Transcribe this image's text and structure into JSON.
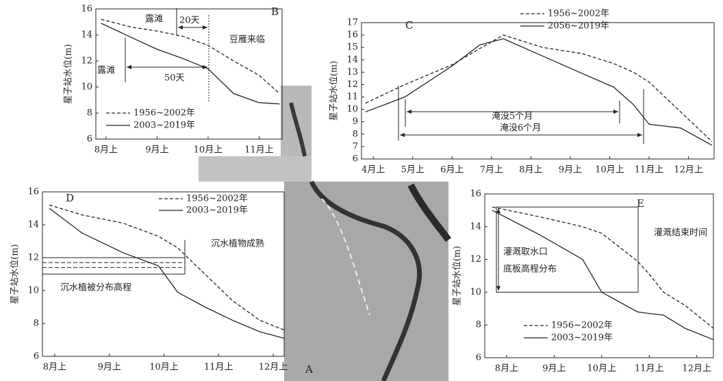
{
  "chart_data": [
    {
      "type": "line",
      "title": "B",
      "y_label": "星子站水位(m)",
      "x": [
        -0.1,
        0.5,
        1,
        1.5,
        2,
        2.5,
        3,
        3.4
      ],
      "xlim": [
        -0.2,
        3.45
      ],
      "xticks": [
        {
          "value": 0,
          "label": "8月上"
        },
        {
          "value": 1,
          "label": "9月上"
        },
        {
          "value": 2,
          "label": "10月上"
        },
        {
          "value": 3,
          "label": "11月上"
        }
      ],
      "ylim": [
        6,
        16
      ],
      "yticks": [
        6,
        8,
        10,
        12,
        14,
        16
      ],
      "series": [
        {
          "name": "1956~2002年",
          "color": "#222222",
          "line_style": "dashed",
          "values": [
            15.2,
            14.6,
            14.3,
            13.9,
            13.2,
            12.0,
            10.9,
            9.5
          ]
        },
        {
          "name": "2003~2019年",
          "color": "#222222",
          "line_style": "solid",
          "values": [
            14.9,
            13.8,
            12.9,
            12.2,
            11.4,
            9.5,
            8.8,
            8.7
          ]
        }
      ],
      "annotations": [
        "露滩",
        "20天",
        "豆雁来临",
        "露滩",
        "50天"
      ]
    },
    {
      "type": "line",
      "title": "C",
      "y_label": "星子站水位(m)",
      "x": [
        -0.2,
        0.8,
        2,
        2.7,
        3.3,
        4.3,
        5.3,
        6.1,
        6.6,
        7,
        7.8,
        8.6
      ],
      "xlim": [
        -0.3,
        8.65
      ],
      "xticks": [
        {
          "value": 0,
          "label": "4月上"
        },
        {
          "value": 1,
          "label": "5月上"
        },
        {
          "value": 2,
          "label": "6月上"
        },
        {
          "value": 3,
          "label": "7月上"
        },
        {
          "value": 4,
          "label": "8月上"
        },
        {
          "value": 5,
          "label": "9月上"
        },
        {
          "value": 6,
          "label": "10月上"
        },
        {
          "value": 7,
          "label": "11月上"
        },
        {
          "value": 8,
          "label": "12月上"
        }
      ],
      "ylim": [
        6,
        17
      ],
      "yticks": [
        6,
        7,
        8,
        9,
        10,
        11,
        12,
        13,
        14,
        15,
        16,
        17
      ],
      "series": [
        {
          "name": "1956~2002年",
          "color": "#222222",
          "line_style": "dashed",
          "values": [
            10.5,
            12.0,
            13.6,
            14.9,
            16.0,
            15.0,
            14.5,
            13.7,
            13.0,
            12.2,
            9.8,
            7.4
          ]
        },
        {
          "name": "2056~2019年",
          "color": "#222222",
          "line_style": "solid",
          "values": [
            9.8,
            11.0,
            13.5,
            15.2,
            15.7,
            14.3,
            12.9,
            11.8,
            10.4,
            8.8,
            8.5,
            7.1
          ]
        }
      ],
      "annotations": [
        "淹没5个月",
        "淹没6个月"
      ]
    },
    {
      "type": "line",
      "title": "D",
      "y_label": "星子站水位(m)",
      "x": [
        -0.1,
        0.5,
        1.25,
        1.9,
        2.25,
        2.75,
        3.25,
        3.75,
        4.2
      ],
      "xlim": [
        -0.225,
        4.2
      ],
      "xticks": [
        {
          "value": 0,
          "label": "8月上"
        },
        {
          "value": 1,
          "label": "9月上"
        },
        {
          "value": 2,
          "label": "10月上"
        },
        {
          "value": 3,
          "label": "11月上"
        },
        {
          "value": 4,
          "label": "12月上"
        }
      ],
      "ylim": [
        6,
        16
      ],
      "yticks": [
        6,
        8,
        10,
        12,
        14,
        16
      ],
      "series": [
        {
          "name": "1956~2002年",
          "color": "#222222",
          "line_style": "dashed",
          "values": [
            15.2,
            14.6,
            14.1,
            13.3,
            12.6,
            11.0,
            9.4,
            8.2,
            7.6
          ]
        },
        {
          "name": "2003~2019年",
          "color": "#222222",
          "line_style": "solid",
          "values": [
            15.0,
            13.5,
            12.3,
            11.5,
            9.9,
            9.0,
            8.2,
            7.5,
            7.1
          ]
        }
      ],
      "annotations": [
        "沉水植物成熟",
        "沉水植被分布高程"
      ]
    },
    {
      "type": "line",
      "title": "E",
      "y_label": "星子站水位(m)",
      "x": [
        -0.3,
        0.7,
        1.6,
        2,
        2.75,
        3.0,
        3.3,
        3.75,
        4.35
      ],
      "xlim": [
        -0.46,
        4.35
      ],
      "xticks": [
        {
          "value": 0,
          "label": "8月上"
        },
        {
          "value": 1,
          "label": "9月上"
        },
        {
          "value": 2,
          "label": "10月上"
        },
        {
          "value": 3,
          "label": "11月上"
        },
        {
          "value": 4,
          "label": "12月上"
        }
      ],
      "ylim": [
        6,
        16
      ],
      "yticks": [
        6,
        8,
        10,
        12,
        14,
        16
      ],
      "series": [
        {
          "name": "1956~2002年",
          "color": "#222222",
          "line_style": "dashed",
          "values": [
            15.2,
            14.6,
            14.0,
            13.6,
            11.9,
            11.1,
            10.0,
            9.2,
            7.8
          ]
        },
        {
          "name": "2003~2019年",
          "color": "#222222",
          "line_style": "solid",
          "values": [
            15.0,
            13.5,
            12.0,
            10.0,
            8.8,
            8.7,
            8.6,
            7.8,
            7.1
          ]
        }
      ],
      "annotations": [
        "灌溉结束时间",
        "灌溉取水口",
        "底板高程分布"
      ]
    }
  ],
  "map": {
    "label": "A"
  }
}
